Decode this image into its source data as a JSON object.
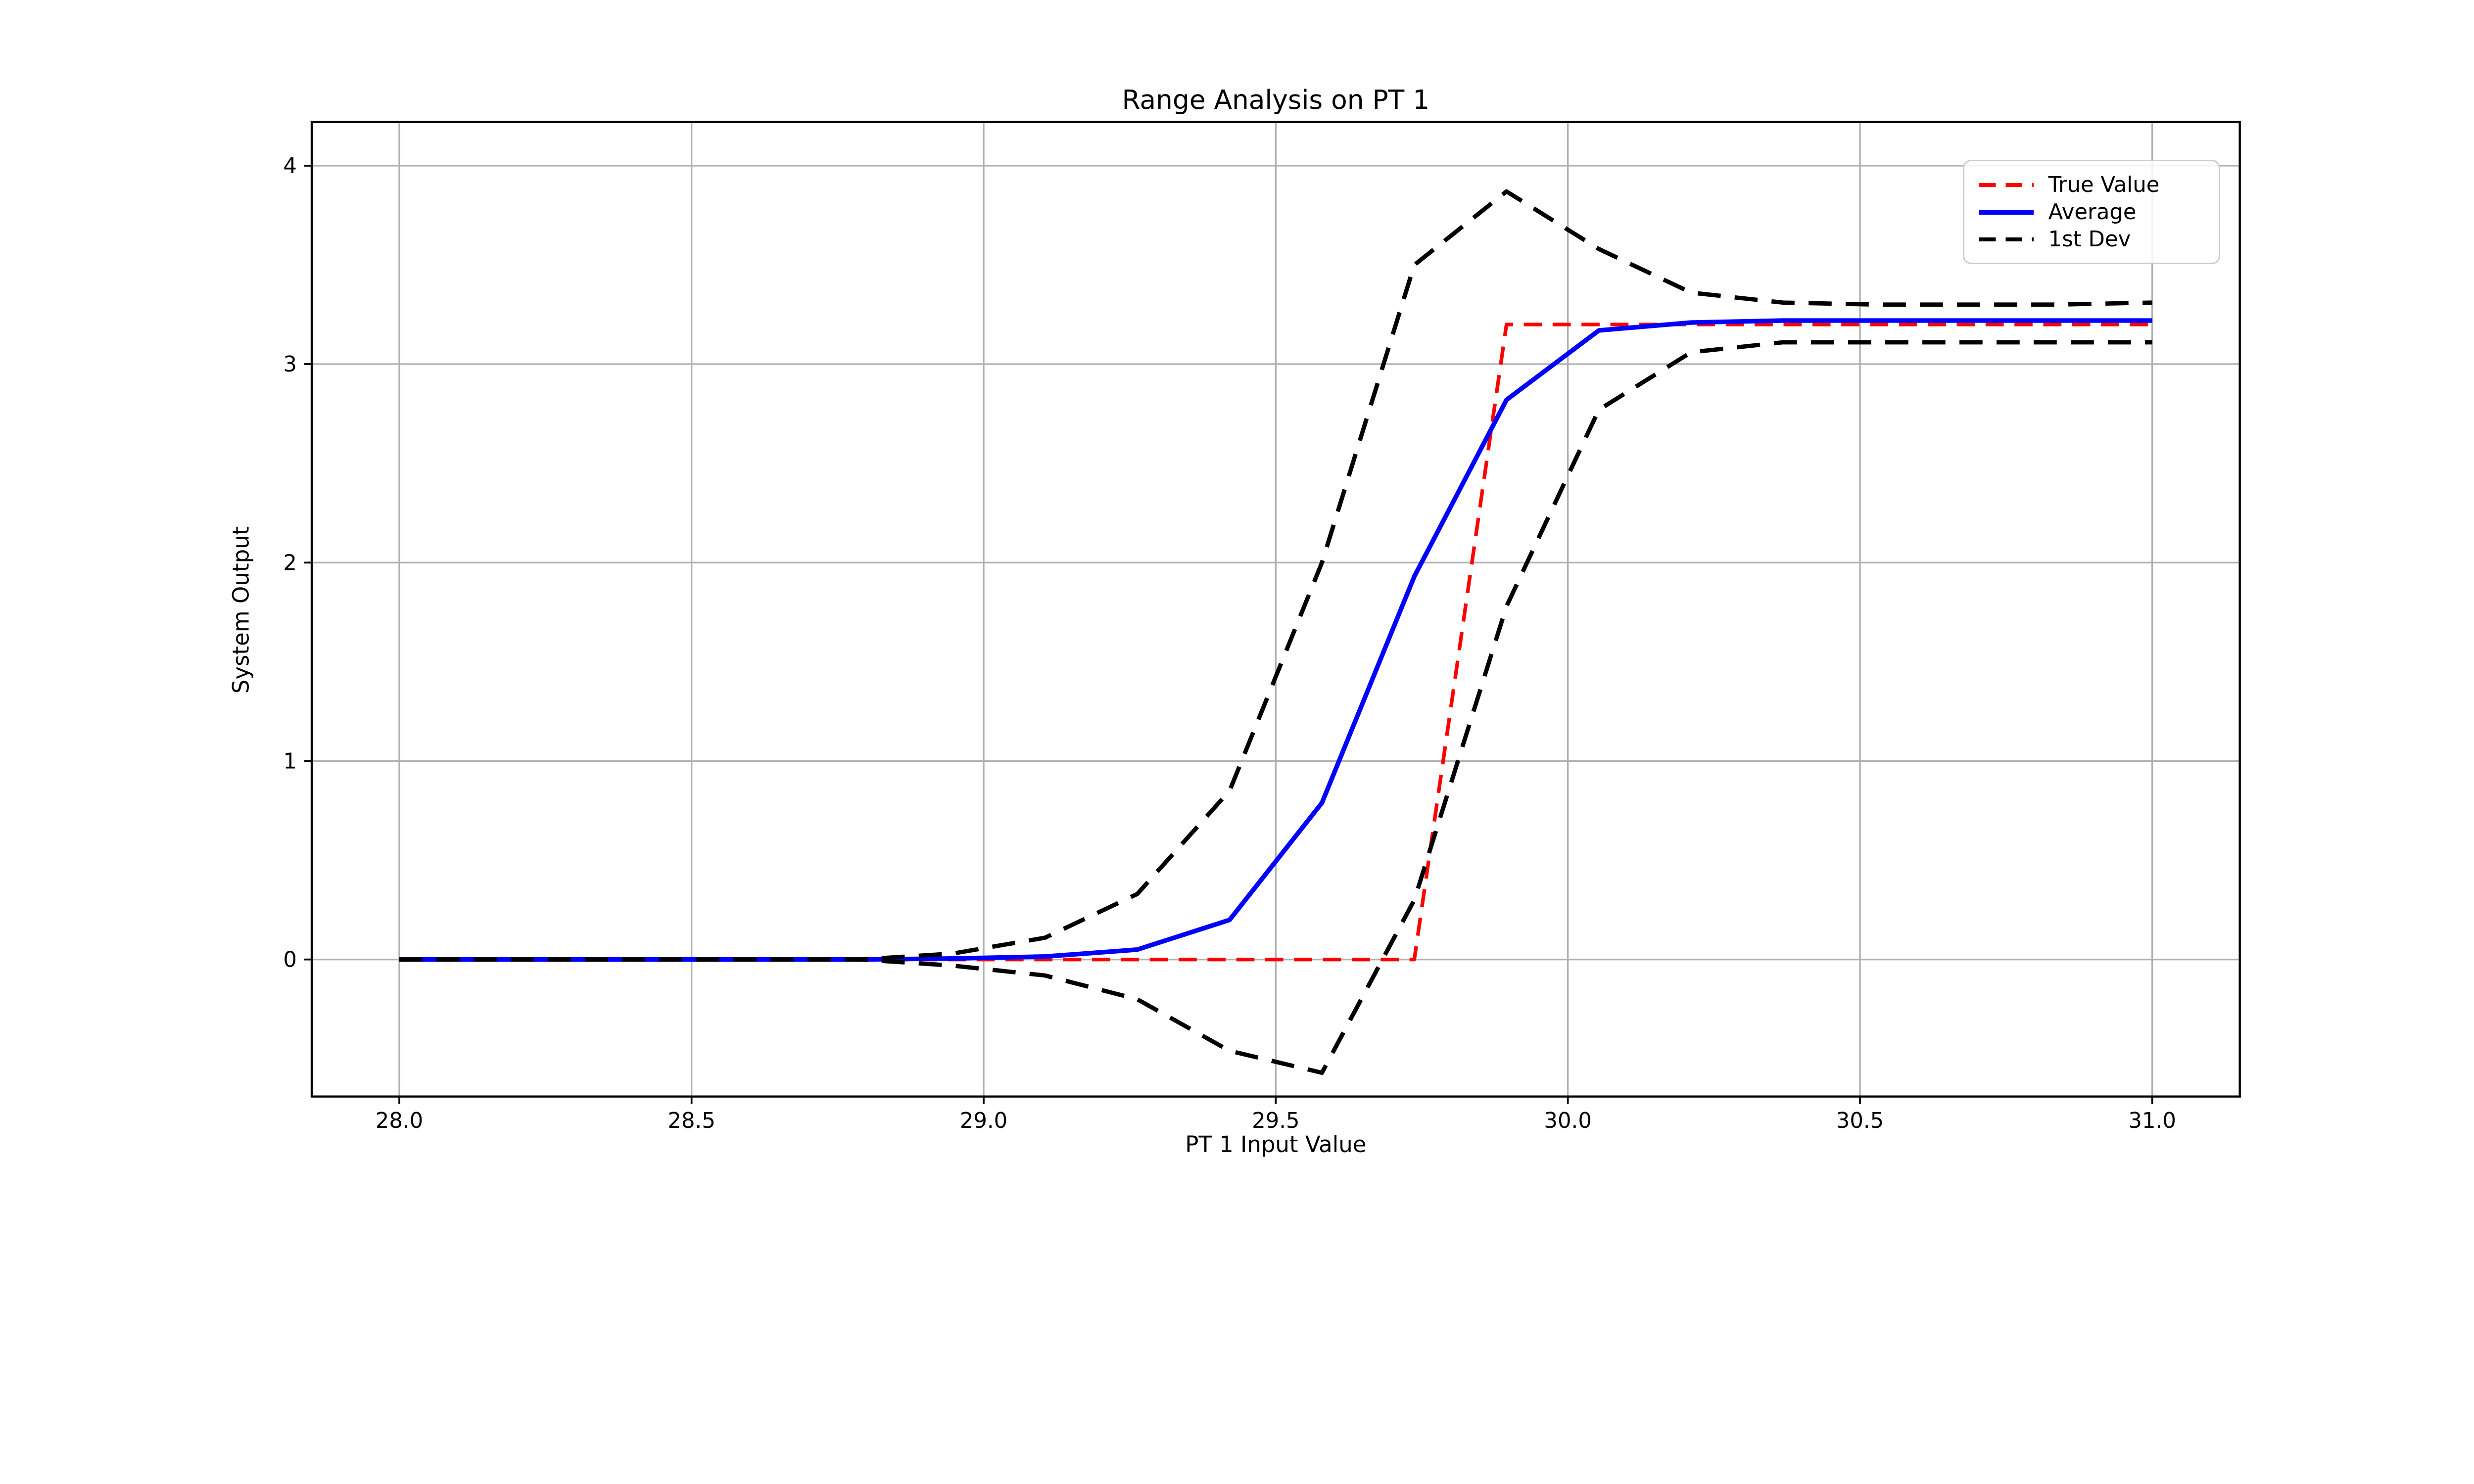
{
  "chart_data": {
    "type": "line",
    "title": "Range Analysis on PT 1",
    "xlabel": "PT 1 Input Value",
    "ylabel": "System Output",
    "xlim": [
      27.85,
      31.15
    ],
    "ylim": [
      -0.69,
      4.22
    ],
    "grid": true,
    "grid_color": "#b0b0b0",
    "background_color": "#ffffff",
    "legend_position": "upper right",
    "xticks": {
      "values": [
        28.0,
        28.5,
        29.0,
        29.5,
        30.0,
        30.5,
        31.0
      ],
      "labels": [
        "28.0",
        "28.5",
        "29.0",
        "29.5",
        "30.0",
        "30.5",
        "31.0"
      ]
    },
    "yticks": {
      "values": [
        0,
        1,
        2,
        3,
        4
      ],
      "labels": [
        "0",
        "1",
        "2",
        "3",
        "4"
      ]
    },
    "x": [
      28.0,
      28.158,
      28.316,
      28.474,
      28.632,
      28.789,
      28.947,
      29.105,
      29.263,
      29.421,
      29.579,
      29.737,
      29.895,
      30.053,
      30.211,
      30.368,
      30.526,
      30.684,
      30.842,
      31.0
    ],
    "series": [
      {
        "name": "True Value",
        "color": "#ff0000",
        "style": "dashed",
        "in_legend": true,
        "values": [
          0,
          0,
          0,
          0,
          0,
          0,
          0,
          0,
          0,
          0,
          0,
          0,
          3.2,
          3.2,
          3.2,
          3.2,
          3.2,
          3.2,
          3.2,
          3.2
        ]
      },
      {
        "name": "Average",
        "color": "#0000ff",
        "style": "solid",
        "in_legend": true,
        "values": [
          0,
          0,
          0,
          0,
          0,
          0,
          0.005,
          0.015,
          0.05,
          0.2,
          0.79,
          1.93,
          2.82,
          3.17,
          3.21,
          3.22,
          3.22,
          3.22,
          3.22,
          3.22
        ]
      },
      {
        "name": "1st Dev",
        "color": "#000000",
        "style": "dashed",
        "in_legend": true,
        "values": [
          0,
          0,
          0,
          0,
          0,
          0,
          0.03,
          0.11,
          0.33,
          0.85,
          2.0,
          3.5,
          3.87,
          3.58,
          3.36,
          3.31,
          3.3,
          3.3,
          3.3,
          3.31
        ]
      },
      {
        "name": "1st Dev lower band",
        "color": "#000000",
        "style": "dashed",
        "in_legend": false,
        "values": [
          0,
          0,
          0,
          0,
          0,
          0,
          -0.03,
          -0.08,
          -0.2,
          -0.46,
          -0.57,
          0.3,
          1.78,
          2.77,
          3.06,
          3.11,
          3.11,
          3.11,
          3.11,
          3.11
        ]
      }
    ]
  }
}
